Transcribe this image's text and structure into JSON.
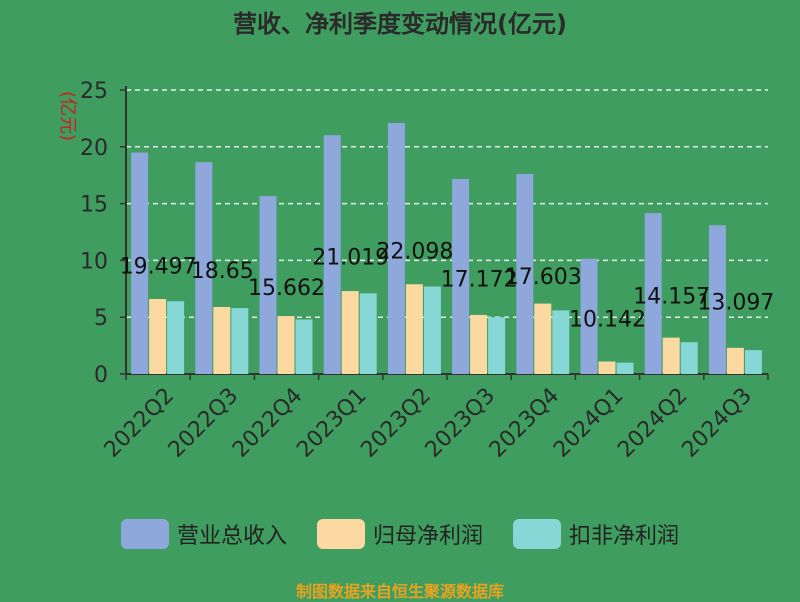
{
  "chart_data": {
    "type": "bar",
    "title": "营收、净利季度变动情况(亿元)",
    "ylabel": "(亿元)",
    "xlabel": "",
    "ylim": [
      0,
      25
    ],
    "yticks": [
      0,
      5,
      10,
      15,
      20,
      25
    ],
    "grid": "horizontal-dashed",
    "legend_position": "bottom",
    "categories": [
      "2022Q2",
      "2022Q3",
      "2022Q4",
      "2023Q1",
      "2023Q2",
      "2023Q3",
      "2023Q4",
      "2024Q1",
      "2024Q2",
      "2024Q3"
    ],
    "series": [
      {
        "name": "营业总收入",
        "color": "#8ea8dc",
        "values": [
          19.497,
          18.65,
          15.662,
          21.019,
          22.098,
          17.172,
          17.603,
          10.142,
          14.157,
          13.097
        ]
      },
      {
        "name": "归母净利润",
        "color": "#fbd9a0",
        "values": [
          6.6,
          5.9,
          5.1,
          7.3,
          7.9,
          5.2,
          6.2,
          1.1,
          3.2,
          2.3
        ]
      },
      {
        "name": "扣非净利润",
        "color": "#86d7d5",
        "values": [
          6.4,
          5.8,
          4.8,
          7.1,
          7.7,
          5.0,
          5.6,
          1.0,
          2.8,
          2.1
        ]
      }
    ],
    "data_labels": [
      "19.497",
      "18.65",
      "15.662",
      "21.019",
      "22.098",
      "17.172",
      "17.603",
      "10.142",
      "14.157",
      "13.097"
    ]
  },
  "footer": "制图数据来自恒生聚源数据库"
}
